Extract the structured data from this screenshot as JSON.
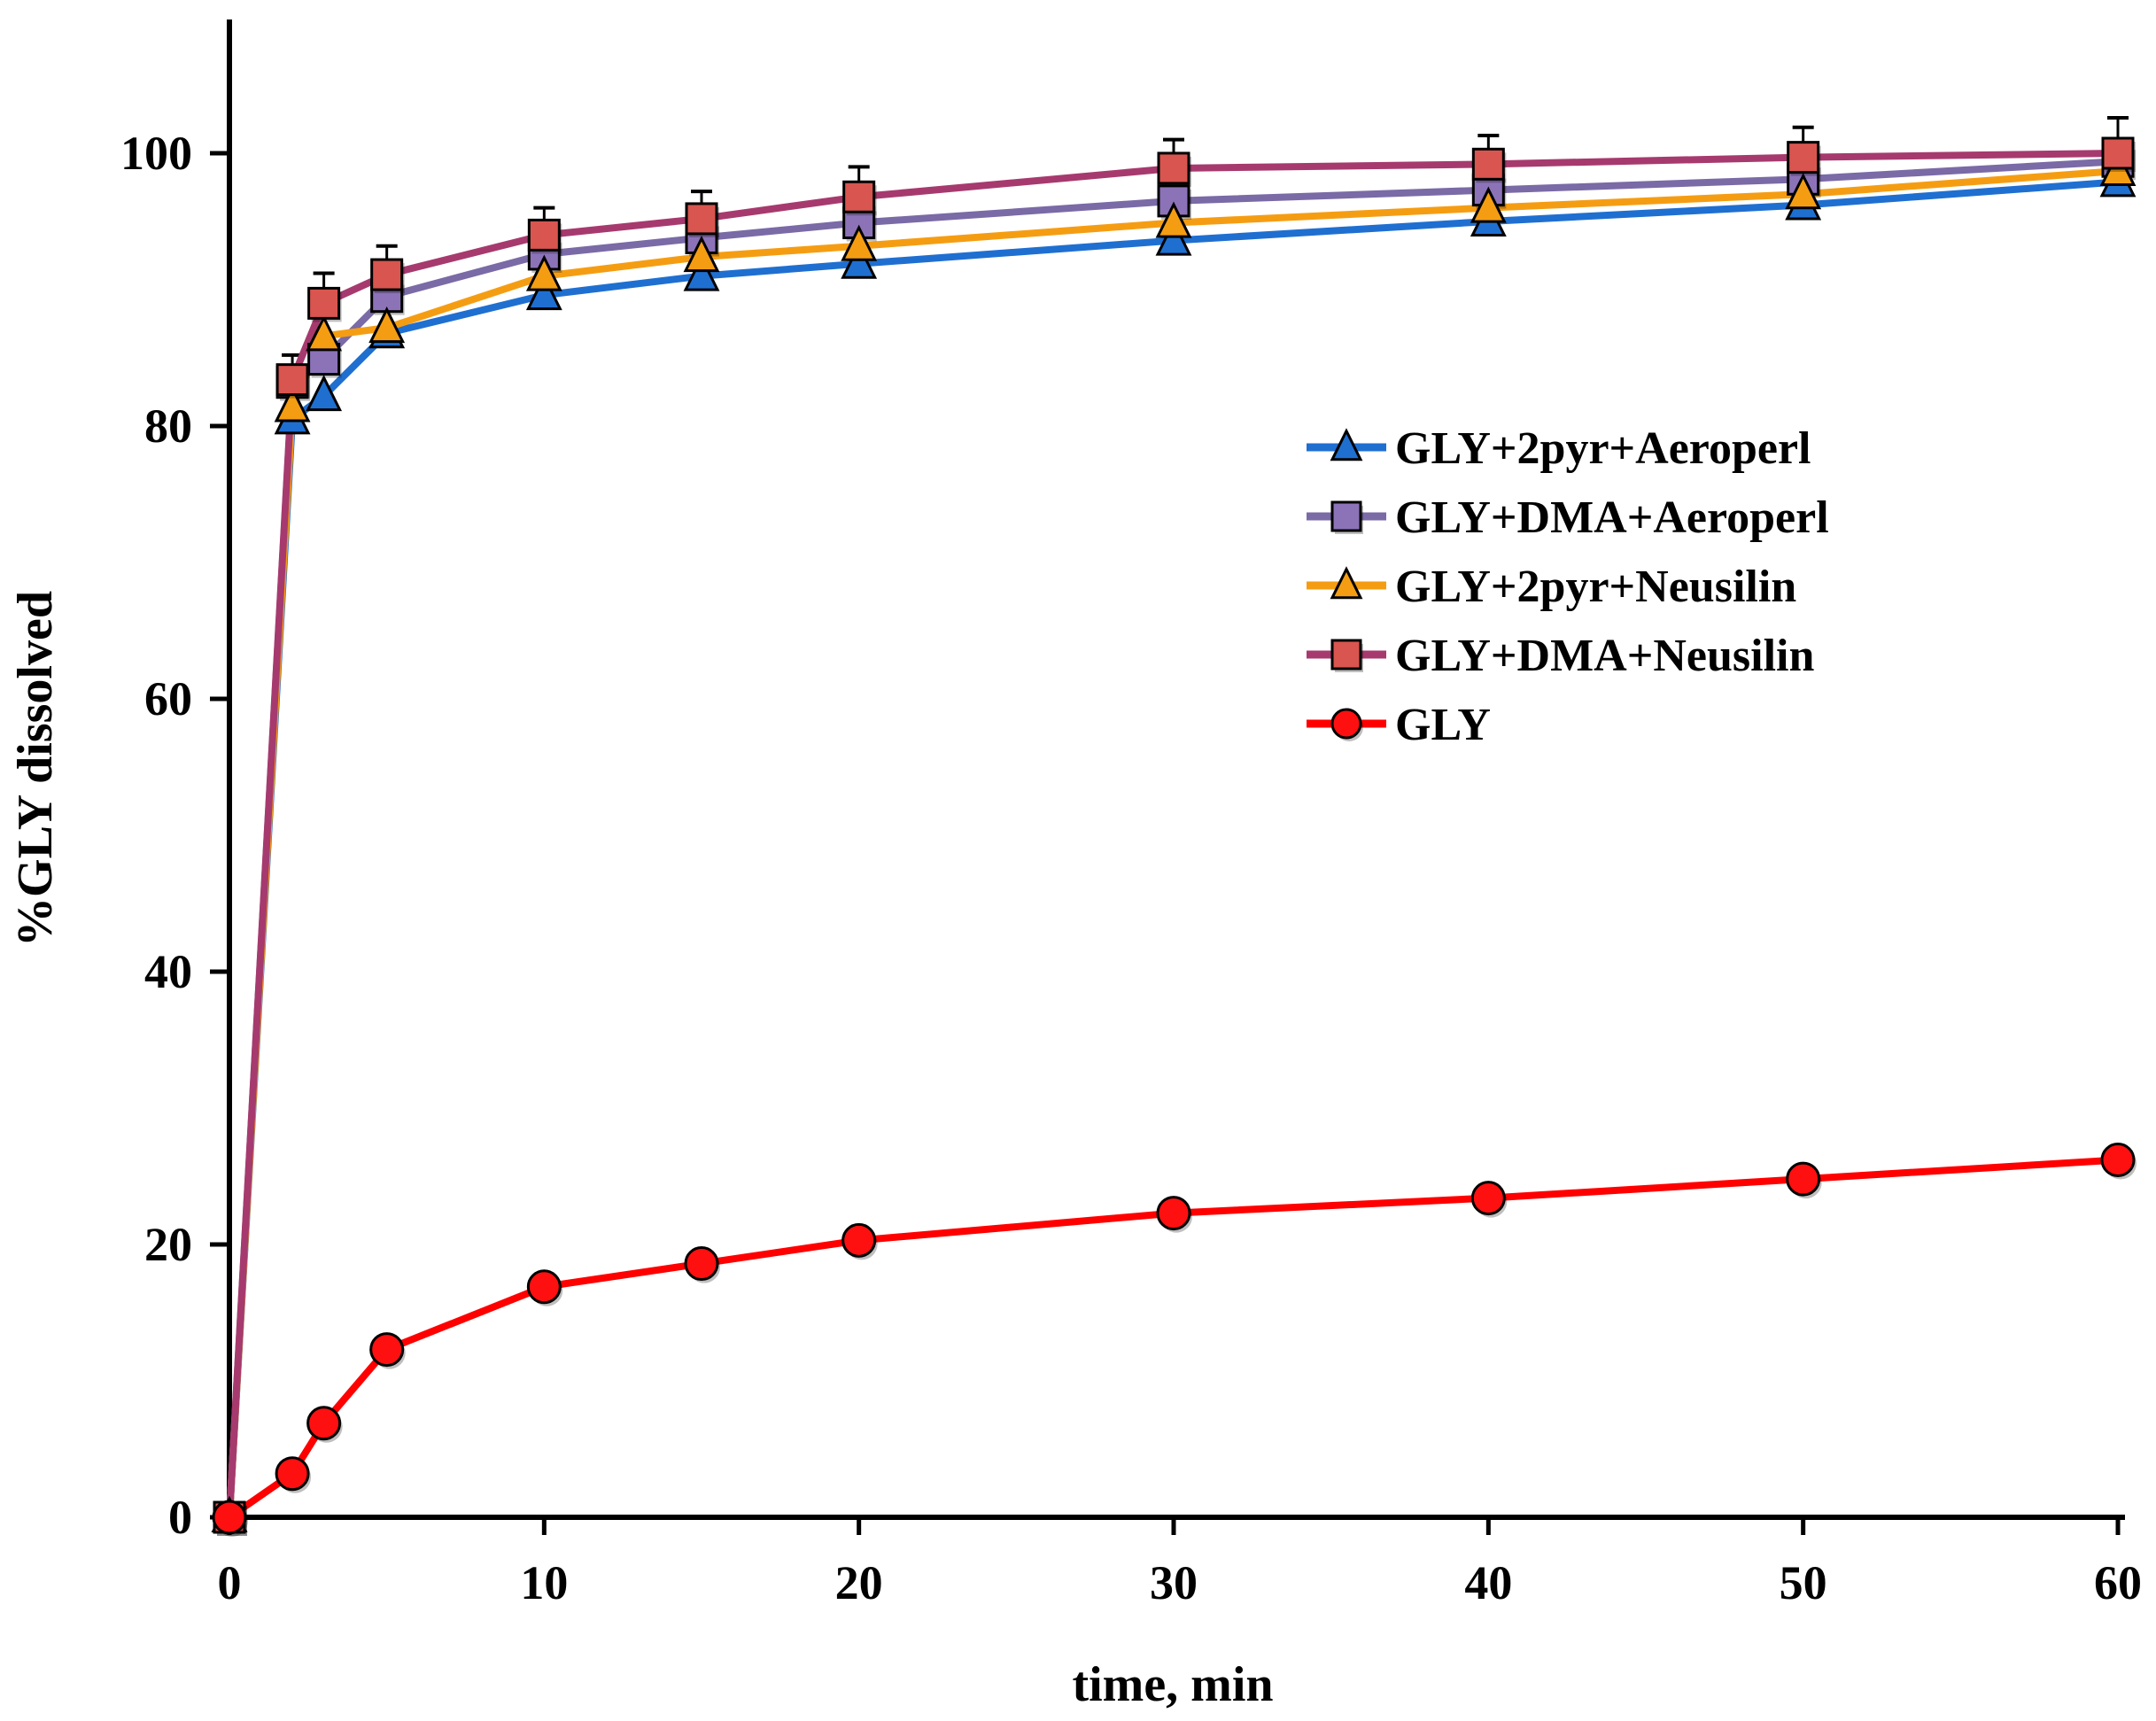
{
  "chart_data": {
    "type": "line",
    "title": "",
    "xlabel": "time, min",
    "ylabel": "%GLY dissolved",
    "xlim": [
      0,
      60
    ],
    "ylim": [
      0,
      110
    ],
    "x_ticks": [
      0,
      10,
      20,
      30,
      40,
      50,
      60
    ],
    "y_ticks": [
      0,
      20,
      40,
      60,
      80,
      100
    ],
    "grid": false,
    "legend_position": "right-middle",
    "x": [
      0,
      2,
      3,
      5,
      10,
      15,
      20,
      30,
      40,
      50,
      60
    ],
    "series": [
      {
        "name": "GLY+2pyr+Aeroperl",
        "color": "#1f6fd1",
        "marker": "triangle",
        "marker_fill": "#1f6fd1",
        "values": [
          0,
          80.5,
          82.2,
          86.8,
          89.6,
          91.0,
          91.9,
          93.6,
          95.0,
          96.2,
          97.9
        ]
      },
      {
        "name": "GLY+DMA+Aeroperl",
        "color": "#7a6aa6",
        "marker": "square",
        "marker_fill": "#8c73b8",
        "values": [
          0,
          83.2,
          84.9,
          89.5,
          92.6,
          93.8,
          94.9,
          96.5,
          97.3,
          98.1,
          99.4
        ]
      },
      {
        "name": "GLY+2pyr+Neusilin",
        "color": "#f59d12",
        "marker": "triangle",
        "marker_fill": "#f59d12",
        "values": [
          0,
          81.4,
          86.6,
          87.2,
          91.0,
          92.4,
          93.2,
          94.9,
          96.0,
          97.0,
          98.7
        ]
      },
      {
        "name": "GLY+DMA+Neusilin",
        "color": "#a63a6e",
        "marker": "square",
        "marker_fill": "#d9554f",
        "values": [
          0,
          83.4,
          89.0,
          91.1,
          94.0,
          95.2,
          96.8,
          98.9,
          99.2,
          99.7,
          100.0
        ]
      },
      {
        "name": "GLY",
        "color": "#ff0000",
        "marker": "circle",
        "marker_fill": "#ff1010",
        "values": [
          0,
          3.2,
          6.9,
          12.3,
          16.9,
          18.6,
          20.3,
          22.3,
          23.4,
          24.8,
          26.2
        ]
      }
    ],
    "error_bars_top_series": [
      0,
      85.2,
      91.2,
      93.2,
      96.0,
      97.2,
      99.0,
      101.0,
      101.3,
      101.9,
      102.6
    ]
  }
}
